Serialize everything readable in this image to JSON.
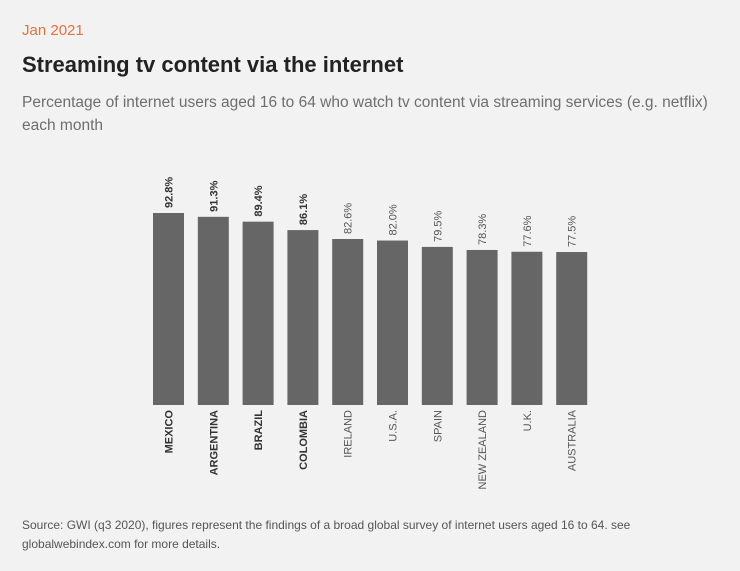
{
  "header": {
    "date": "Jan 2021",
    "title": "Streaming tv content via the internet",
    "subtitle": "Percentage of internet users aged 16 to 64 who watch tv content via streaming services (e.g. netflix) each month"
  },
  "footer": {
    "source": "Source: GWI (q3 2020), figures represent the findings of a broad global survey of internet users aged 16 to 64. see globalwebindex.com for more details."
  },
  "colors": {
    "accent": "#e8703a",
    "bar": "#666666",
    "background": "#f2f2f2"
  },
  "chart_data": {
    "type": "bar",
    "categories": [
      "MEXICO",
      "ARGENTINA",
      "BRAZIL",
      "COLOMBIA",
      "IRELAND",
      "U.S.A.",
      "SPAIN",
      "NEW ZEALAND",
      "U.K.",
      "AUSTRALIA"
    ],
    "values": [
      92.8,
      91.3,
      89.4,
      86.1,
      82.6,
      82.0,
      79.5,
      78.3,
      77.6,
      77.5
    ],
    "labels": [
      "92.8%",
      "91.3%",
      "89.4%",
      "86.1%",
      "82.6%",
      "82.0%",
      "79.5%",
      "78.3%",
      "77.6%",
      "77.5%"
    ],
    "bold_categories": [
      "MEXICO",
      "ARGENTINA",
      "BRAZIL",
      "COLOMBIA"
    ],
    "unit": "%",
    "grid": false,
    "legend": "none"
  }
}
